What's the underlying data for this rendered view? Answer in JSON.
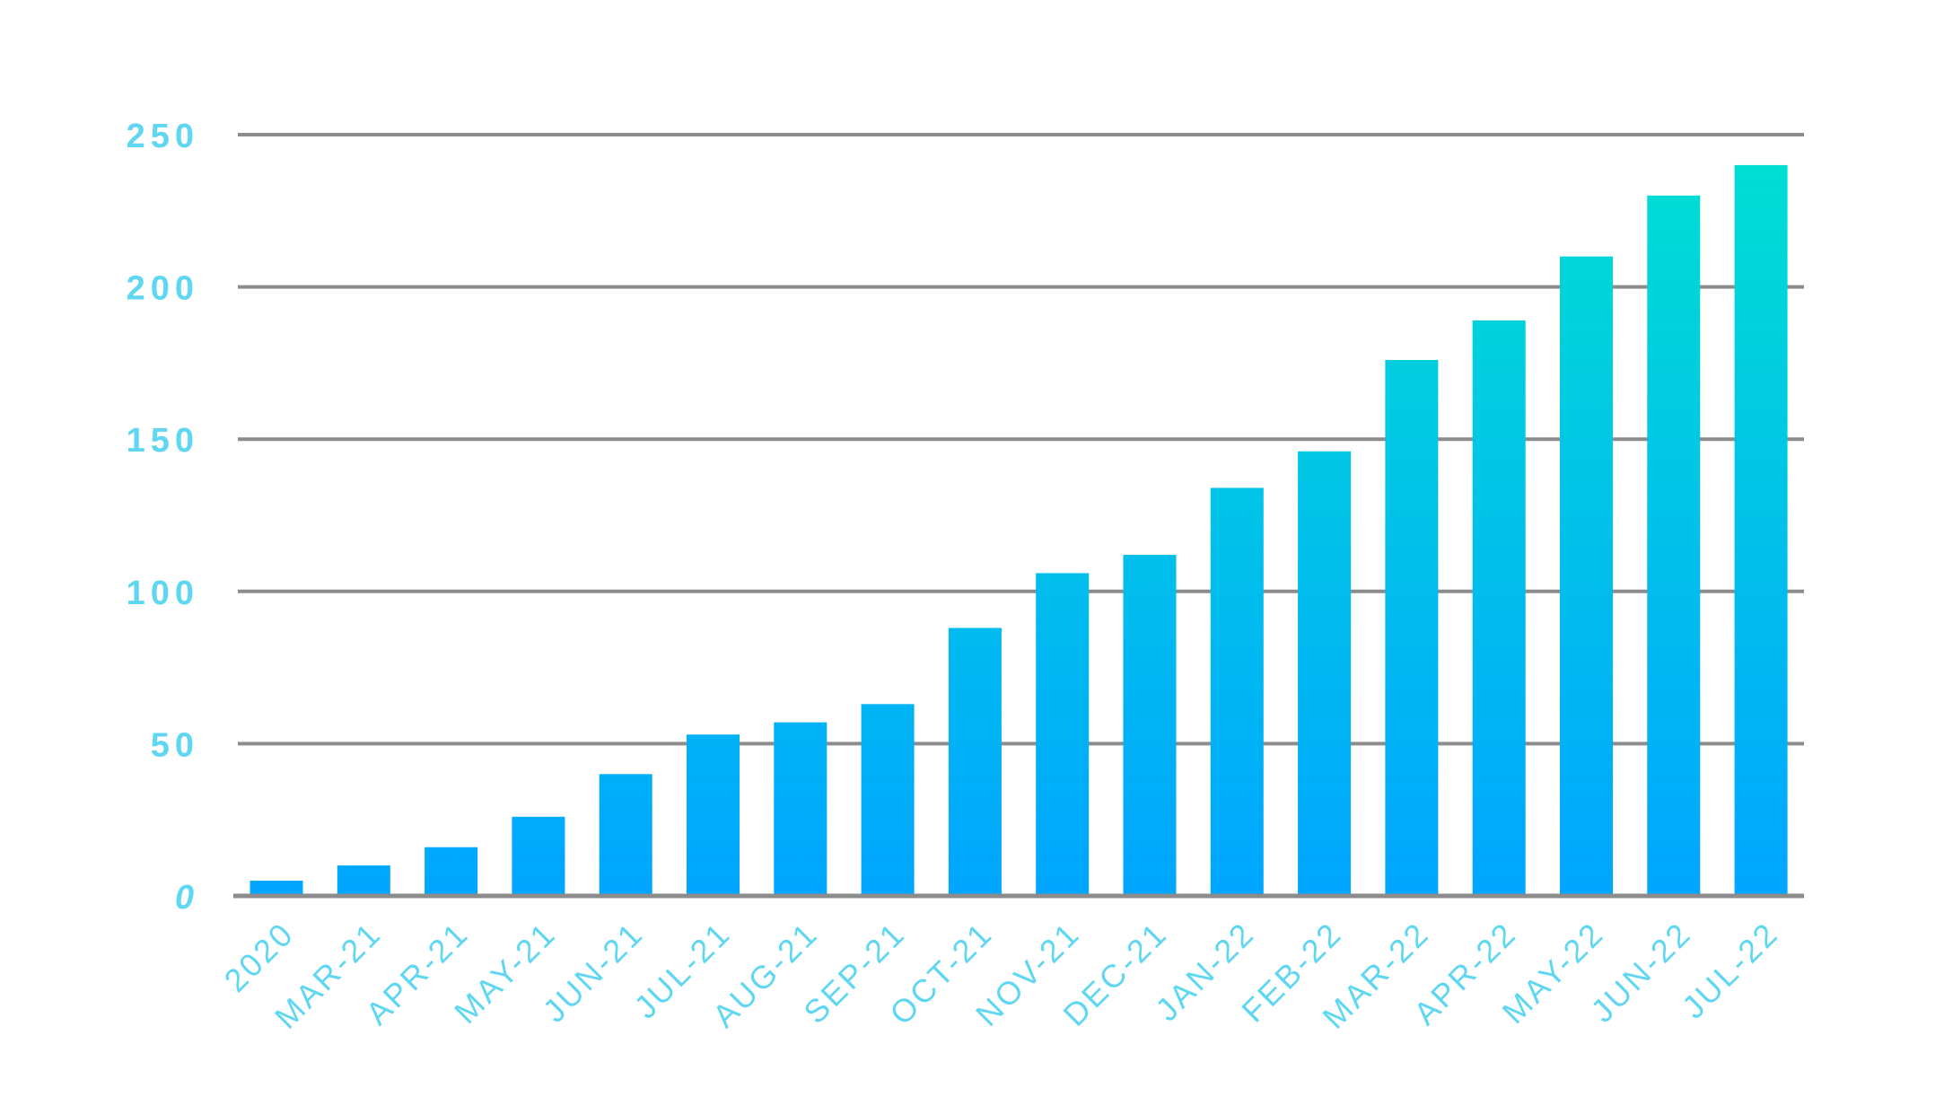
{
  "colors": {
    "gridline": "#8c8c8c",
    "label": "#5fd6f2",
    "bar_bottom": "#00a6ff",
    "bar_top": "#00e0d2",
    "background": "#ffffff"
  },
  "chart_data": {
    "type": "bar",
    "title": "",
    "xlabel": "",
    "ylabel": "",
    "ylim": [
      0,
      250
    ],
    "yticks": [
      0,
      50,
      100,
      150,
      200,
      250
    ],
    "ytick_labels": [
      "0",
      "50",
      "100",
      "150",
      "200",
      "250"
    ],
    "grid": true,
    "legend": "none",
    "categories": [
      "2020",
      "MAR-21",
      "APR-21",
      "MAY-21",
      "JUN-21",
      "JUL-21",
      "AUG-21",
      "SEP-21",
      "OCT-21",
      "NOV-21",
      "DEC-21",
      "JAN-22",
      "FEB-22",
      "MAR-22",
      "APR-22",
      "MAY-22",
      "JUN-22",
      "JUL-22"
    ],
    "values": [
      5,
      10,
      16,
      26,
      40,
      53,
      57,
      63,
      88,
      106,
      112,
      134,
      146,
      176,
      189,
      210,
      230,
      240
    ]
  }
}
